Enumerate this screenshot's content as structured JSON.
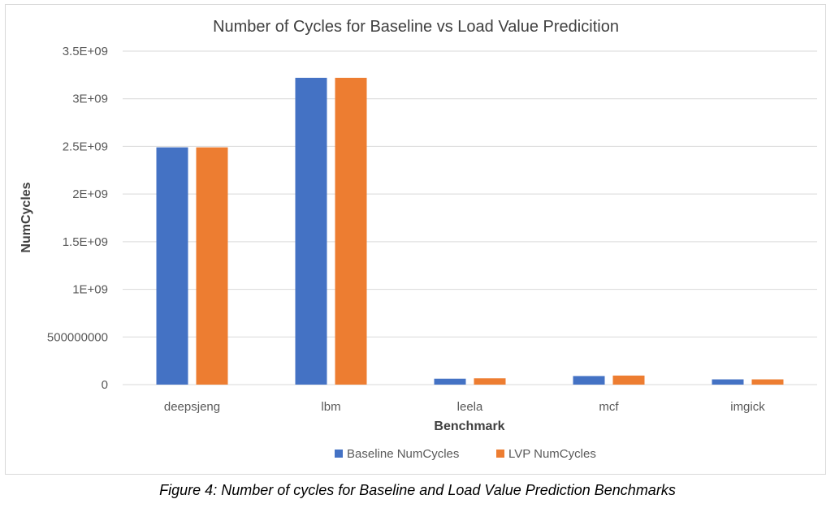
{
  "chart_data": {
    "type": "bar",
    "title": "Number of Cycles for Baseline vs Load Value Predicition",
    "xlabel": "Benchmark",
    "ylabel": "NumCycles",
    "categories": [
      "deepsjeng",
      "lbm",
      "leela",
      "mcf",
      "imgick"
    ],
    "series": [
      {
        "name": "Baseline NumCycles",
        "color": "#4472C4",
        "values": [
          2490000000,
          3220000000,
          62000000,
          90000000,
          55000000
        ]
      },
      {
        "name": "LVP NumCycles",
        "color": "#ED7D31",
        "values": [
          2490000000,
          3220000000,
          66000000,
          95000000,
          55000000
        ]
      }
    ],
    "ylim": [
      0,
      3500000000
    ],
    "yticks": [
      0,
      500000000,
      1000000000,
      1500000000,
      2000000000,
      2500000000,
      3000000000,
      3500000000
    ],
    "ytick_labels": [
      "0",
      "500000000",
      "1E+09",
      "1.5E+09",
      "2E+09",
      "2.5E+09",
      "3E+09",
      "3.5E+09"
    ],
    "grid": true,
    "legend_position": "bottom"
  },
  "caption": "Figure 4: Number of cycles for Baseline and Load Value Prediction Benchmarks"
}
